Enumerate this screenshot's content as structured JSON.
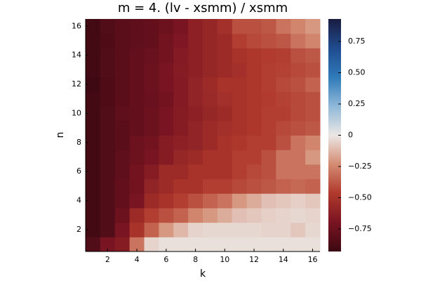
{
  "chart_data": {
    "type": "heatmap",
    "title": "m = 4. (lv - xsmm) / xsmm",
    "xlabel": "k",
    "ylabel": "n",
    "xlim": [
      0.5,
      16.5
    ],
    "ylim": [
      0.5,
      16.5
    ],
    "xticks": [
      2,
      4,
      6,
      8,
      10,
      12,
      14,
      16
    ],
    "yticks": [
      2,
      4,
      6,
      8,
      10,
      12,
      14,
      16
    ],
    "clim": [
      -0.93,
      0.93
    ],
    "cticks": [
      {
        "value": -0.75,
        "label": "−0.75"
      },
      {
        "value": -0.5,
        "label": "−0.50"
      },
      {
        "value": -0.25,
        "label": "−0.25"
      },
      0,
      {
        "value": 0.25,
        "label": "0.25"
      },
      {
        "value": 0.5,
        "label": "0.50"
      },
      {
        "value": 0.75,
        "label": "0.75"
      }
    ],
    "colormap": [
      "#3c0912",
      "#7a1422",
      "#b0392c",
      "#d48b72",
      "#ebe7e5",
      "#8fb8d8",
      "#2f7ab9",
      "#1f4b8f",
      "#1a1c40"
    ],
    "z": [
      [
        -0.85,
        -0.7,
        -0.65,
        -0.3,
        -0.05,
        -0.02,
        -0.02,
        -0.02,
        -0.02,
        -0.02,
        -0.02,
        -0.02,
        -0.02,
        -0.02,
        -0.02,
        -0.02
      ],
      [
        -0.9,
        -0.85,
        -0.7,
        -0.5,
        -0.35,
        -0.2,
        -0.12,
        -0.05,
        -0.04,
        -0.04,
        -0.04,
        -0.04,
        -0.05,
        -0.05,
        -0.08,
        -0.04
      ],
      [
        -0.9,
        -0.85,
        -0.75,
        -0.55,
        -0.45,
        -0.4,
        -0.35,
        -0.25,
        -0.2,
        -0.15,
        -0.1,
        -0.08,
        -0.06,
        -0.05,
        -0.04,
        -0.05
      ],
      [
        -0.9,
        -0.85,
        -0.78,
        -0.7,
        -0.55,
        -0.5,
        -0.45,
        -0.4,
        -0.35,
        -0.3,
        -0.2,
        -0.15,
        -0.1,
        -0.08,
        -0.06,
        -0.08
      ],
      [
        -0.9,
        -0.85,
        -0.78,
        -0.72,
        -0.6,
        -0.55,
        -0.5,
        -0.5,
        -0.45,
        -0.45,
        -0.42,
        -0.4,
        -0.38,
        -0.35,
        -0.33,
        -0.35
      ],
      [
        -0.9,
        -0.85,
        -0.8,
        -0.72,
        -0.65,
        -0.55,
        -0.55,
        -0.5,
        -0.5,
        -0.5,
        -0.45,
        -0.42,
        -0.4,
        -0.3,
        -0.3,
        -0.3
      ],
      [
        -0.9,
        -0.85,
        -0.8,
        -0.75,
        -0.7,
        -0.65,
        -0.58,
        -0.55,
        -0.5,
        -0.5,
        -0.45,
        -0.45,
        -0.4,
        -0.3,
        -0.3,
        -0.2
      ],
      [
        -0.9,
        -0.85,
        -0.82,
        -0.75,
        -0.72,
        -0.65,
        -0.62,
        -0.6,
        -0.55,
        -0.5,
        -0.48,
        -0.45,
        -0.45,
        -0.4,
        -0.3,
        -0.25
      ],
      [
        -0.9,
        -0.85,
        -0.82,
        -0.78,
        -0.75,
        -0.7,
        -0.65,
        -0.6,
        -0.55,
        -0.52,
        -0.5,
        -0.48,
        -0.45,
        -0.42,
        -0.4,
        -0.38
      ],
      [
        -0.9,
        -0.85,
        -0.8,
        -0.78,
        -0.75,
        -0.7,
        -0.65,
        -0.62,
        -0.58,
        -0.55,
        -0.5,
        -0.48,
        -0.45,
        -0.45,
        -0.42,
        -0.4
      ],
      [
        -0.9,
        -0.86,
        -0.82,
        -0.78,
        -0.76,
        -0.72,
        -0.66,
        -0.6,
        -0.56,
        -0.52,
        -0.5,
        -0.48,
        -0.46,
        -0.44,
        -0.42,
        -0.4
      ],
      [
        -0.92,
        -0.86,
        -0.82,
        -0.78,
        -0.75,
        -0.7,
        -0.66,
        -0.6,
        -0.55,
        -0.5,
        -0.5,
        -0.48,
        -0.45,
        -0.42,
        -0.4,
        -0.35
      ],
      [
        -0.9,
        -0.85,
        -0.82,
        -0.78,
        -0.75,
        -0.7,
        -0.65,
        -0.62,
        -0.58,
        -0.55,
        -0.52,
        -0.48,
        -0.45,
        -0.44,
        -0.42,
        -0.4
      ],
      [
        -0.9,
        -0.85,
        -0.82,
        -0.78,
        -0.76,
        -0.72,
        -0.66,
        -0.62,
        -0.58,
        -0.55,
        -0.5,
        -0.48,
        -0.46,
        -0.45,
        -0.4,
        -0.38
      ],
      [
        -0.9,
        -0.86,
        -0.82,
        -0.8,
        -0.78,
        -0.72,
        -0.68,
        -0.62,
        -0.58,
        -0.55,
        -0.45,
        -0.42,
        -0.4,
        -0.38,
        -0.3,
        -0.25
      ],
      [
        -0.9,
        -0.85,
        -0.82,
        -0.8,
        -0.78,
        -0.75,
        -0.7,
        -0.62,
        -0.58,
        -0.52,
        -0.4,
        -0.4,
        -0.38,
        -0.3,
        -0.25,
        -0.2
      ]
    ]
  }
}
